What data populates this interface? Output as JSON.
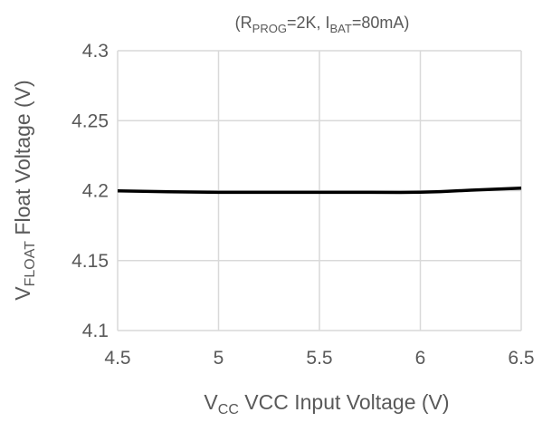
{
  "chart_data": {
    "type": "line",
    "subtitle": {
      "open": "(R",
      "sub1": "PROG",
      "mid": "=2K, I",
      "sub2": "BAT",
      "close": "=80mA)"
    },
    "xlabel": {
      "main": "V",
      "sub": "CC",
      "rest": " VCC Input Voltage  (V)"
    },
    "ylabel": {
      "main": "V",
      "sub": "FLOAT",
      "rest": "  Float Voltage  (V)"
    },
    "xlim": [
      4.5,
      6.5
    ],
    "ylim": [
      4.1,
      4.3
    ],
    "x_ticks": [
      4.5,
      5,
      5.5,
      6,
      6.5
    ],
    "x_tick_labels": [
      "4.5",
      "5",
      "5.5",
      "6",
      "6.5"
    ],
    "y_ticks": [
      4.1,
      4.15,
      4.2,
      4.25,
      4.3
    ],
    "y_tick_labels": [
      "4.1",
      "4.15",
      "4.2",
      "4.25",
      "4.3"
    ],
    "grid": true,
    "series": [
      {
        "color": "#000000",
        "x": [
          4.5,
          4.75,
          5.0,
          5.25,
          5.5,
          5.75,
          5.9,
          6.0,
          6.1,
          6.25,
          6.5
        ],
        "y": [
          4.1998,
          4.1992,
          4.1988,
          4.1988,
          4.1988,
          4.1988,
          4.1987,
          4.1989,
          4.1993,
          4.2003,
          4.2018
        ]
      }
    ]
  }
}
